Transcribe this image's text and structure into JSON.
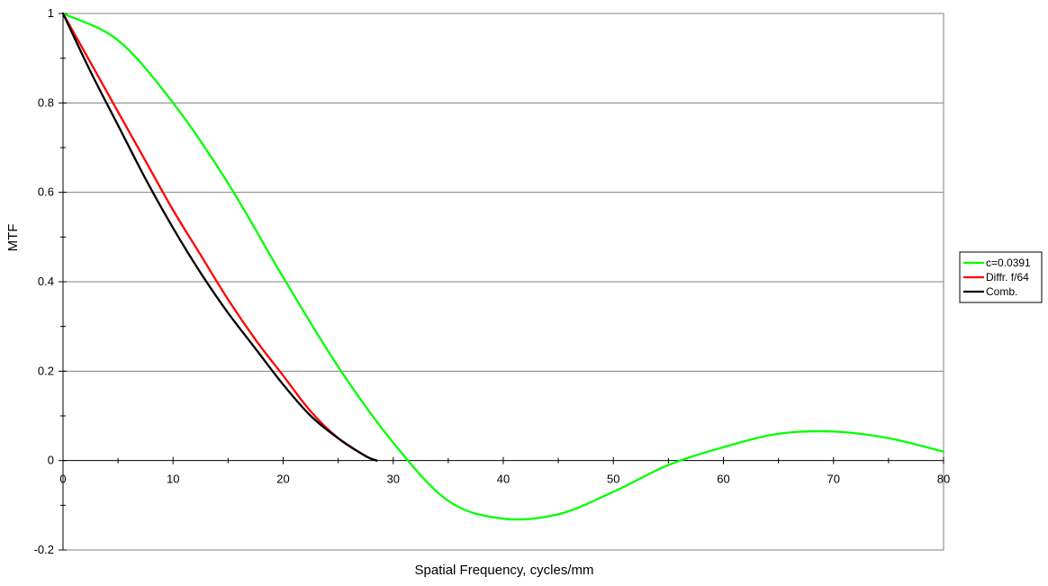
{
  "chart_data": {
    "type": "line",
    "title": "",
    "xlabel": "Spatial Frequency, cycles/mm",
    "ylabel": "MTF",
    "xlim": [
      0,
      80
    ],
    "ylim": [
      -0.2,
      1
    ],
    "x_ticks": [
      0,
      10,
      20,
      30,
      40,
      50,
      60,
      70,
      80
    ],
    "y_ticks": [
      -0.2,
      0,
      0.2,
      0.4,
      0.6,
      0.8,
      1
    ],
    "x_tick_labels": [
      "0",
      "10",
      "20",
      "30",
      "40",
      "50",
      "60",
      "70",
      "80"
    ],
    "y_tick_labels": [
      "-0.2",
      "0",
      "0.2",
      "0.4",
      "0.6",
      "0.8",
      "1"
    ],
    "grid": "horizontal",
    "legend_position": "right",
    "series": [
      {
        "name": "c=0.0391",
        "color": "#00ff00",
        "x": [
          0,
          5,
          10,
          15,
          20,
          25,
          30,
          35,
          40,
          45,
          50,
          55,
          60,
          65,
          70,
          75,
          80
        ],
        "y": [
          1,
          0.94,
          0.8,
          0.62,
          0.41,
          0.21,
          0.04,
          -0.09,
          -0.13,
          -0.12,
          -0.07,
          -0.01,
          0.03,
          0.06,
          0.065,
          0.05,
          0.02
        ]
      },
      {
        "name": "Diffr. f/64",
        "color": "#ff0000",
        "x": [
          0,
          2.5,
          5,
          7.5,
          10,
          12.5,
          15,
          17.5,
          20,
          22.5,
          25,
          27.5,
          28.5
        ],
        "y": [
          1,
          0.89,
          0.78,
          0.67,
          0.56,
          0.46,
          0.36,
          0.27,
          0.19,
          0.11,
          0.05,
          0.01,
          0
        ]
      },
      {
        "name": "Comb.",
        "color": "#000000",
        "x": [
          0,
          2.5,
          5,
          7.5,
          10,
          12.5,
          15,
          17.5,
          20,
          22.5,
          25,
          27.5,
          28.5
        ],
        "y": [
          1,
          0.87,
          0.75,
          0.63,
          0.52,
          0.42,
          0.33,
          0.25,
          0.17,
          0.1,
          0.05,
          0.01,
          0
        ]
      }
    ]
  }
}
